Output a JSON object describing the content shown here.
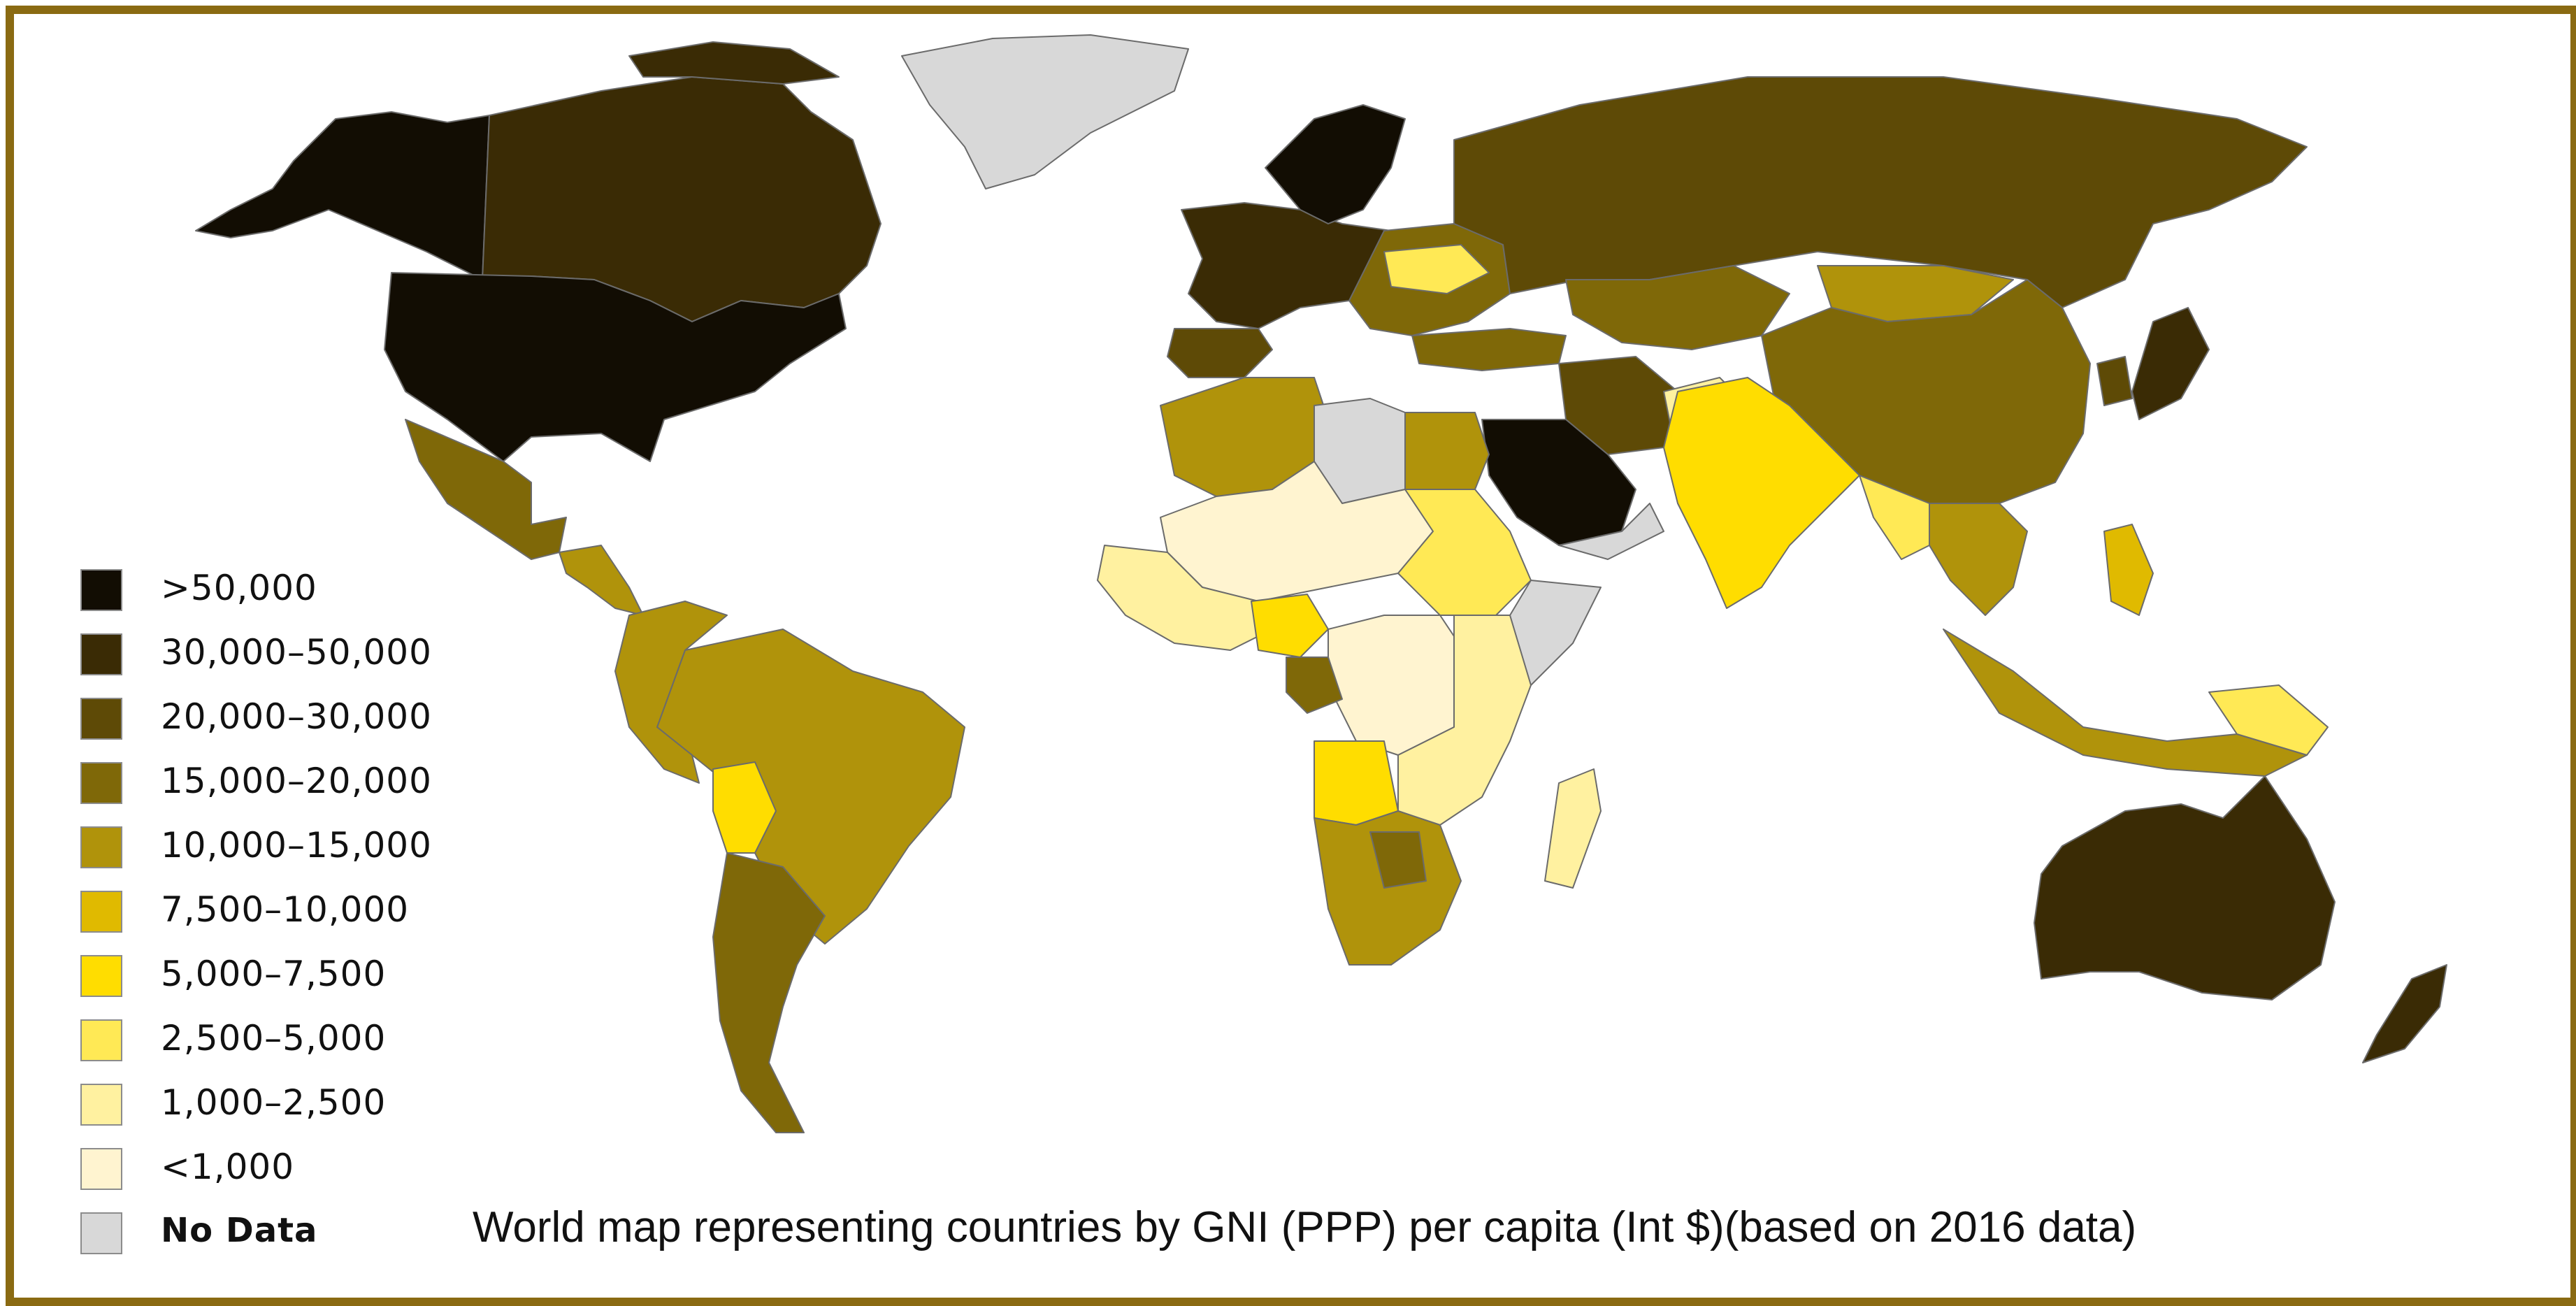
{
  "caption": "World map representing countries by GNI (PPP) per capita (Int $)(based on 2016 data)",
  "legend": {
    "items": [
      {
        "label": ">50,000",
        "color": "#120d03"
      },
      {
        "label": "30,000–50,000",
        "color": "#3a2b05"
      },
      {
        "label": "20,000–30,000",
        "color": "#5e4a06"
      },
      {
        "label": "15,000–20,000",
        "color": "#7f6808"
      },
      {
        "label": "10,000–15,000",
        "color": "#b0930b"
      },
      {
        "label": "7,500–10,000",
        "color": "#e0ba00"
      },
      {
        "label": "5,000–7,500",
        "color": "#ffdd00"
      },
      {
        "label": "2,500–5,000",
        "color": "#ffe955"
      },
      {
        "label": "1,000–2,500",
        "color": "#fff1a0"
      },
      {
        "label": "<1,000",
        "color": "#fff4d0"
      },
      {
        "label": "No Data",
        "color": "#d8d8d8"
      }
    ]
  },
  "colors": {
    "frame": "#8a6a12",
    "border": "#6b6b6b"
  }
}
